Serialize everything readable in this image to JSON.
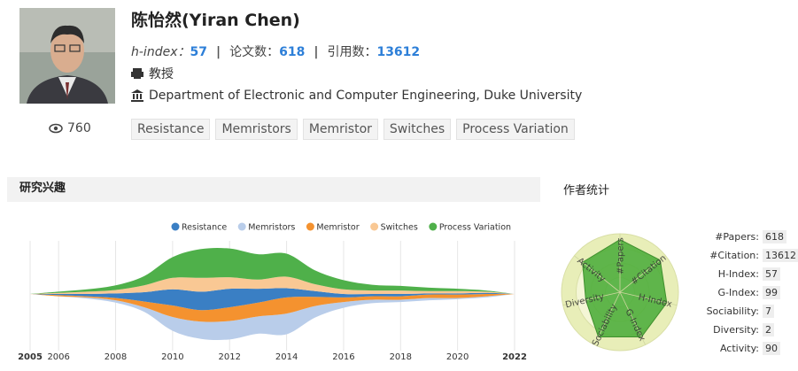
{
  "profile": {
    "name": "陈怡然(Yiran Chen)",
    "h_index_label": "h-index：",
    "h_index": 57,
    "papers_label": "论文数：",
    "papers": 618,
    "citations_label": "引用数：",
    "citations": 13612,
    "position": "教授",
    "affiliation": "Department of Electronic and Computer Engineering, Duke University",
    "views": 760,
    "tags": [
      "Resistance",
      "Memristors",
      "Memristor",
      "Switches",
      "Process Variation"
    ]
  },
  "chart_data": [
    {
      "type": "streamgraph",
      "title": "研究兴趣",
      "x": [
        2005,
        2006,
        2007,
        2008,
        2009,
        2010,
        2011,
        2012,
        2013,
        2014,
        2015,
        2016,
        2017,
        2018,
        2019,
        2020,
        2021,
        2022
      ],
      "xlim": [
        2005,
        2022
      ],
      "xticks": [
        2005,
        2006,
        2008,
        2010,
        2012,
        2014,
        2016,
        2018,
        2020,
        2022
      ],
      "series": [
        {
          "name": "Resistance",
          "color": "#3a7fc4",
          "values": [
            0,
            1,
            2,
            4,
            8,
            14,
            16,
            16,
            12,
            8,
            5,
            3,
            2,
            2,
            1,
            1,
            1,
            0
          ]
        },
        {
          "name": "Memristors",
          "color": "#b9cdea",
          "values": [
            0,
            0,
            1,
            2,
            4,
            12,
            15,
            16,
            15,
            18,
            10,
            5,
            3,
            2,
            2,
            1,
            1,
            0
          ]
        },
        {
          "name": "Memristor",
          "color": "#f4922f",
          "values": [
            0,
            1,
            1,
            2,
            5,
            10,
            10,
            12,
            12,
            14,
            8,
            4,
            3,
            3,
            3,
            3,
            2,
            0
          ]
        },
        {
          "name": "Switches",
          "color": "#f9c894",
          "values": [
            0,
            1,
            2,
            3,
            6,
            10,
            12,
            10,
            8,
            10,
            6,
            4,
            3,
            3,
            2,
            2,
            1,
            0
          ]
        },
        {
          "name": "Process Variation",
          "color": "#4fb04a",
          "values": [
            0,
            1,
            2,
            4,
            8,
            18,
            25,
            25,
            22,
            20,
            12,
            8,
            5,
            4,
            3,
            2,
            1,
            0
          ]
        }
      ]
    },
    {
      "type": "radar",
      "title": "作者统计",
      "axes": [
        "#Papers",
        "#Citation",
        "H-Index",
        "G-Index",
        "Sociability",
        "Diversity",
        "Activity"
      ],
      "values": [
        0.9,
        0.88,
        0.82,
        0.85,
        0.85,
        0.6,
        0.82
      ],
      "rlim": [
        0,
        1
      ],
      "rticks": [
        0.25,
        0.5,
        0.75,
        1
      ],
      "color": "#4fae3c",
      "stats": [
        {
          "label": "#Papers:",
          "value": 618
        },
        {
          "label": "#Citation:",
          "value": 13612
        },
        {
          "label": "H-Index:",
          "value": 57
        },
        {
          "label": "G-Index:",
          "value": 99
        },
        {
          "label": "Sociability:",
          "value": 7
        },
        {
          "label": "Diversity:",
          "value": 2
        },
        {
          "label": "Activity:",
          "value": 90
        }
      ]
    }
  ]
}
